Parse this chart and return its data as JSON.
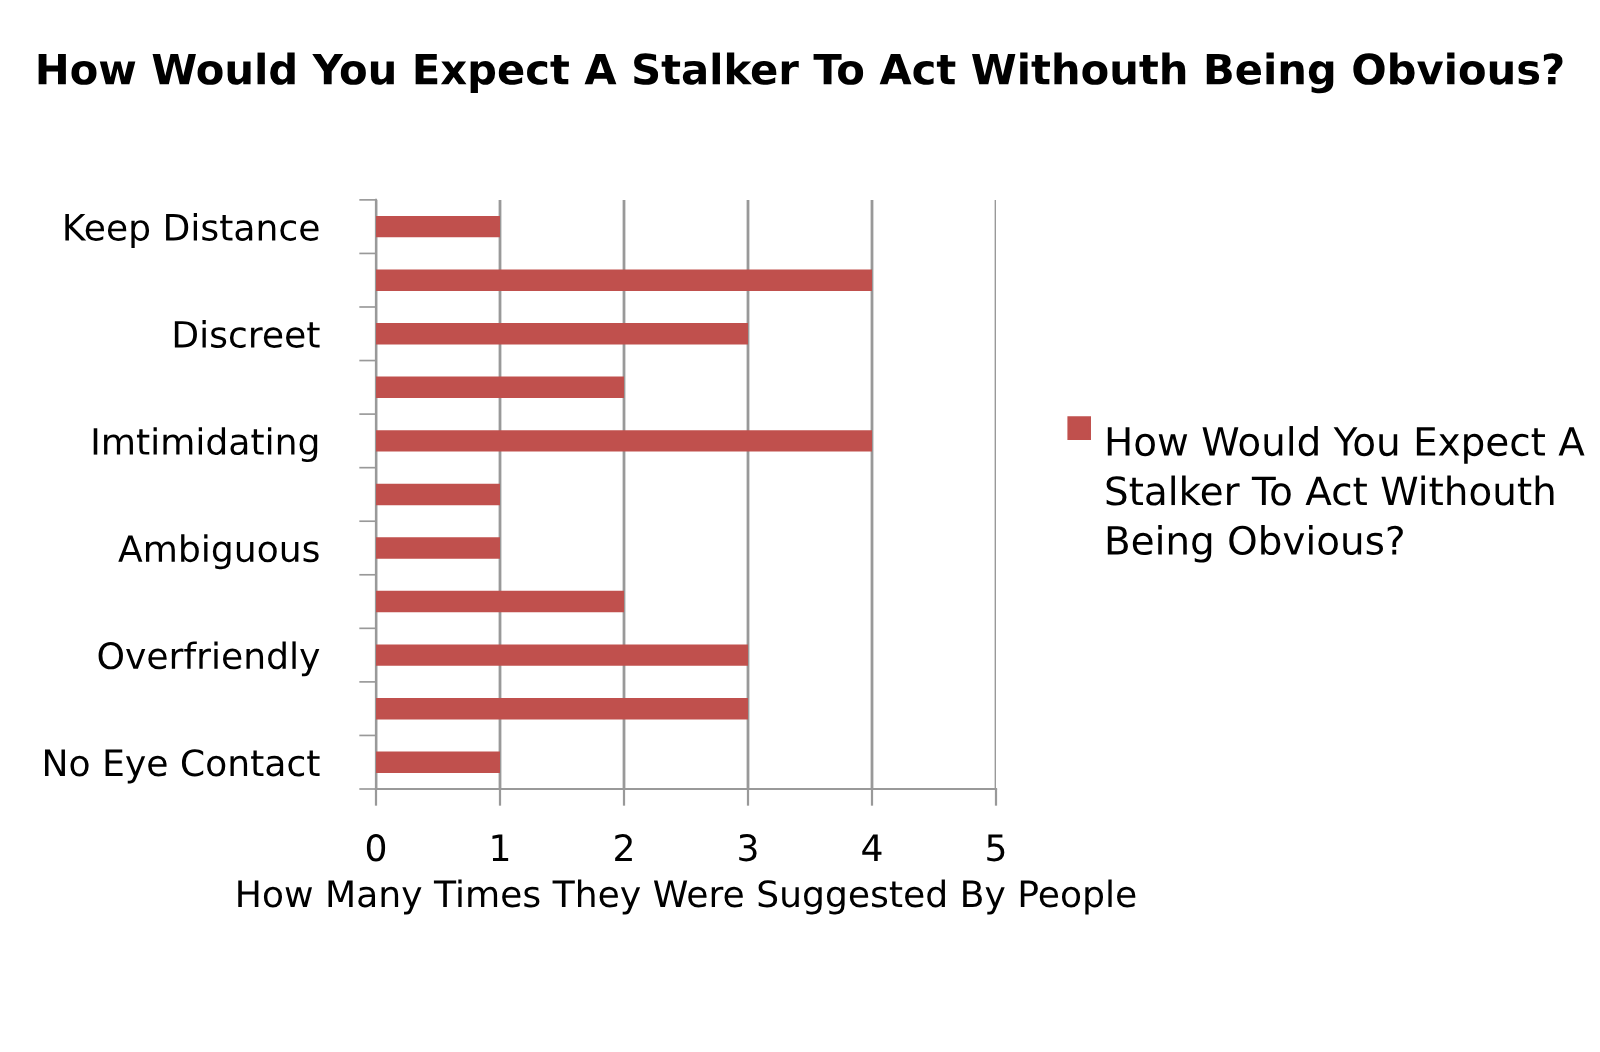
{
  "chart_data": {
    "type": "bar",
    "orientation": "horizontal",
    "title": "How Would You Expect A Stalker To Act Withouth Being Obvious?",
    "xlabel": "How Many Times They Were Suggested By People",
    "categories": [
      "Keep Distance",
      null,
      "Discreet",
      null,
      "Imtimidating",
      null,
      "Ambiguous",
      null,
      "Overfriendly",
      null,
      "No Eye Contact"
    ],
    "series": [
      {
        "name": "How Would You Expect A Stalker To Act Withouth Being Obvious?",
        "color": "#c0504d",
        "values": [
          1,
          4,
          3,
          2,
          4,
          1,
          1,
          2,
          3,
          3,
          1
        ]
      }
    ],
    "xlim": [
      0,
      5
    ],
    "xticks": [
      0,
      1,
      2,
      3,
      4,
      5
    ],
    "grid": "x",
    "legend": "right"
  }
}
